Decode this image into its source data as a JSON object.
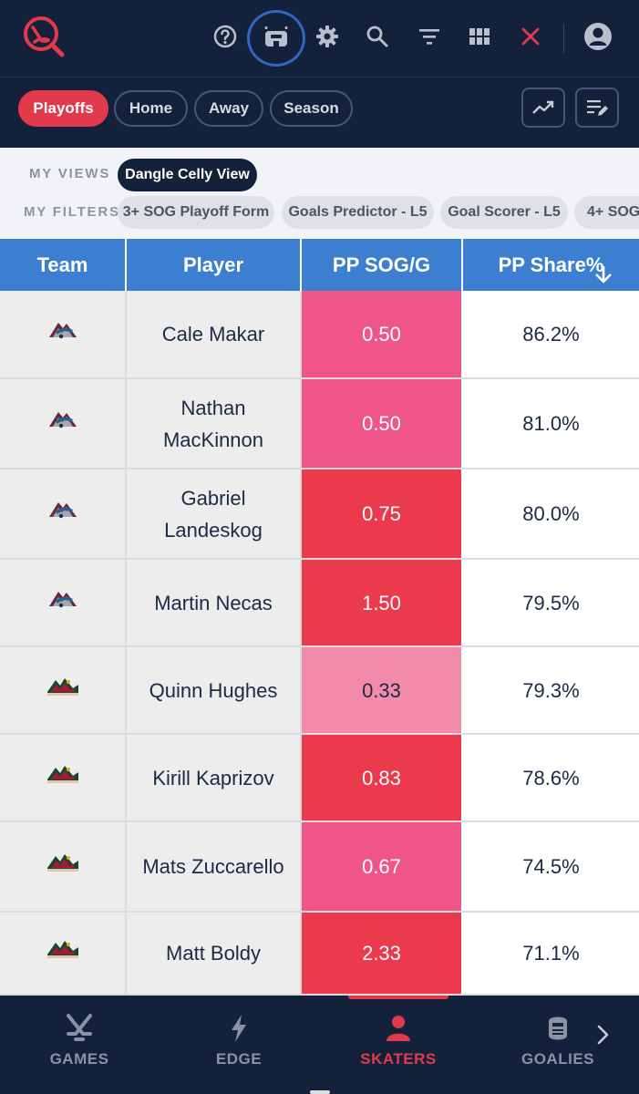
{
  "topbar": {
    "icons": [
      "logo-icon",
      "help-icon",
      "stadium-icon",
      "gear-icon",
      "search-icon",
      "filter-icon",
      "grid-icon",
      "close-icon",
      "account-icon"
    ],
    "colors": {
      "background": "#14213a",
      "accent": "#e23a4c",
      "highlight_ring": "#2f67c4"
    }
  },
  "segments": [
    {
      "label": "Playoffs",
      "active": true
    },
    {
      "label": "Home",
      "active": false
    },
    {
      "label": "Away",
      "active": false
    },
    {
      "label": "Season",
      "active": false
    }
  ],
  "toolbar_icons": [
    "trend-icon",
    "edit-list-icon"
  ],
  "views": {
    "views_label": "MY VIEWS",
    "active_view": "Dangle Celly View",
    "filters_label": "MY FILTERS",
    "filters": [
      "3+ SOG Playoff Form",
      "Goals Predictor - L5",
      "Goal Scorer - L5",
      "4+ SOG"
    ]
  },
  "table": {
    "columns": [
      "Team",
      "Player",
      "PP SOG/G",
      "PP Share%"
    ],
    "sort_icon": "arrow-down-icon",
    "rows": [
      {
        "team_icon": "avalanche-logo-icon",
        "player": "Cale Makar",
        "pp_sog_g": "0.50",
        "pp_share": "86.2%",
        "heat": "#ef5586"
      },
      {
        "team_icon": "avalanche-logo-icon",
        "player": "Nathan MacKinnon",
        "pp_sog_g": "0.50",
        "pp_share": "81.0%",
        "heat": "#ef5586"
      },
      {
        "team_icon": "avalanche-logo-icon",
        "player": "Gabriel Landeskog",
        "pp_sog_g": "0.75",
        "pp_share": "80.0%",
        "heat": "#ea3a4b"
      },
      {
        "team_icon": "avalanche-logo-icon",
        "player": "Martin Necas",
        "pp_sog_g": "1.50",
        "pp_share": "79.5%",
        "heat": "#ea3a4b"
      },
      {
        "team_icon": "wild-logo-icon",
        "player": "Quinn Hughes",
        "pp_sog_g": "0.33",
        "pp_share": "79.3%",
        "heat": "#f28aaa"
      },
      {
        "team_icon": "wild-logo-icon",
        "player": "Kirill Kaprizov",
        "pp_sog_g": "0.83",
        "pp_share": "78.6%",
        "heat": "#ea3a4b"
      },
      {
        "team_icon": "wild-logo-icon",
        "player": "Mats Zuccarello",
        "pp_sog_g": "0.67",
        "pp_share": "74.5%",
        "heat": "#ef5586"
      },
      {
        "team_icon": "wild-logo-icon",
        "player": "Matt Boldy",
        "pp_sog_g": "2.33",
        "pp_share": "71.1%",
        "heat": "#ea3a4b"
      }
    ]
  },
  "bottom_nav": [
    {
      "label": "GAMES",
      "icon": "hockey-sticks-icon",
      "active": false
    },
    {
      "label": "EDGE",
      "icon": "lightning-icon",
      "active": false
    },
    {
      "label": "SKATERS",
      "icon": "person-icon",
      "active": true
    },
    {
      "label": "GOALIES",
      "icon": "goalie-mask-icon",
      "active": false
    }
  ],
  "bottom_nav_more_icon": "chevron-right-icon"
}
